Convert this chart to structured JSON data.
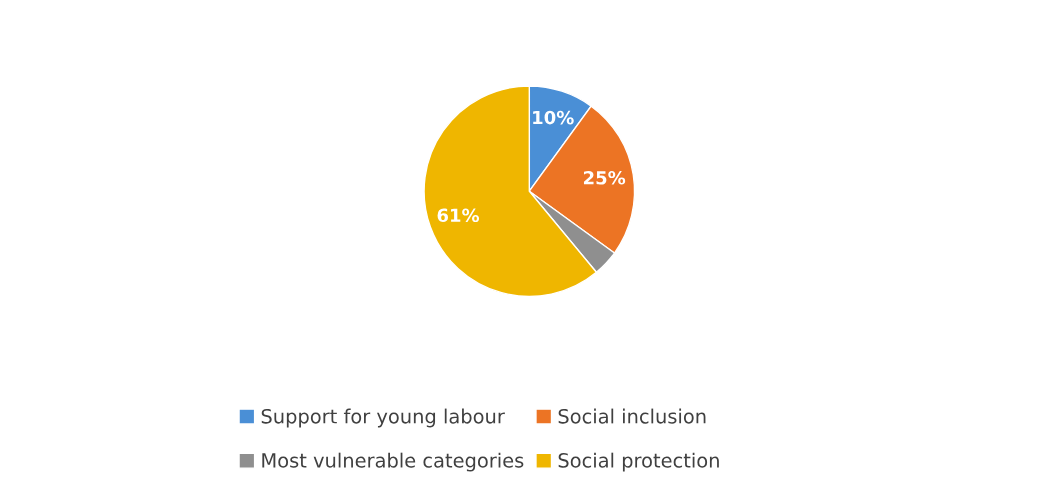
{
  "chart_data": {
    "type": "pie",
    "categories": [
      "Support for young labour",
      "Social inclusion",
      "Most vulnerable categories",
      "Social protection"
    ],
    "values": [
      10,
      25,
      4,
      61
    ],
    "value_labels": [
      "10%",
      "25%",
      null,
      "61%"
    ],
    "colors": [
      "#4a8fd6",
      "#ec7424",
      "#8f8f8f",
      "#efb600"
    ],
    "legend": "bottom"
  }
}
